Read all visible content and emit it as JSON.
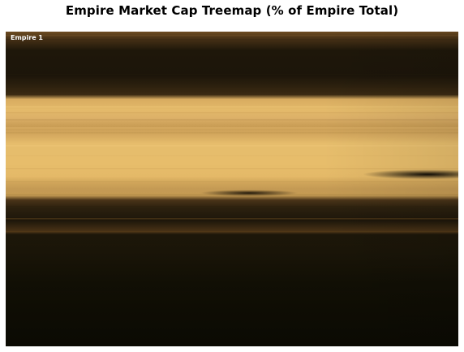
{
  "title": "Empire Market Cap Treemap (% of Empire Total)",
  "colors": {
    "light": "#e8bd68",
    "mid": "#c89a52",
    "dark": "#0c0b04",
    "brown": "#5a3d1c"
  },
  "chart_data": {
    "type": "treemap",
    "title": "Empire Market Cap Treemap (% of Empire Total)",
    "items": [
      {
        "label": "Empire 1",
        "value": 100
      }
    ],
    "unit": "% of Empire Total"
  }
}
